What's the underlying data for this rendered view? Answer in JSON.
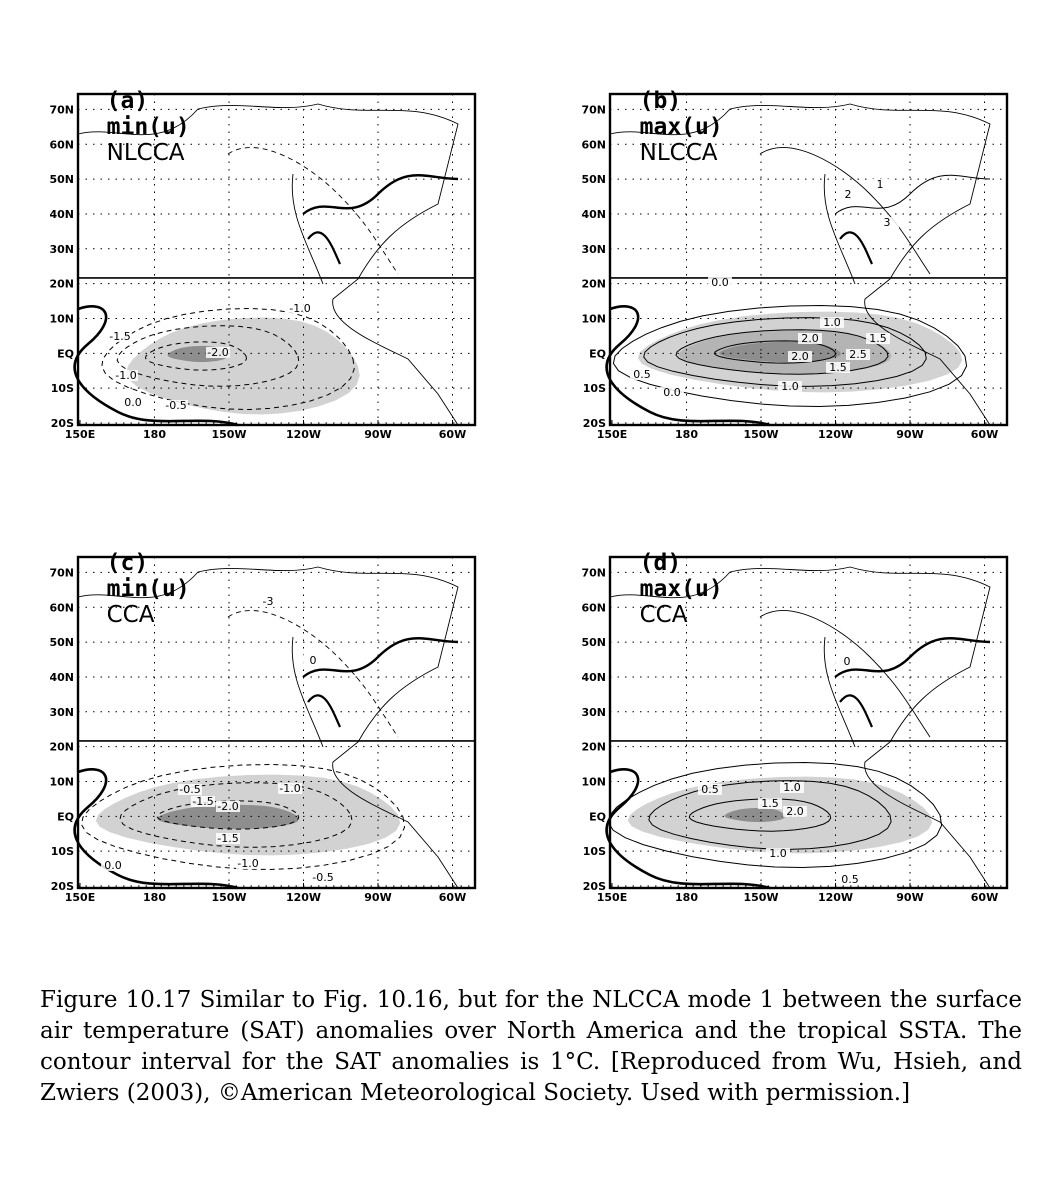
{
  "panels": [
    {
      "letter": "(a)",
      "fn": "min(u)",
      "method": "NLCCA",
      "contours": [
        {
          "kind": "dash",
          "label": "-1.0"
        },
        {
          "kind": "dash",
          "label": "-1.5"
        },
        {
          "kind": "dash",
          "label": "-2.0"
        },
        {
          "kind": "dash",
          "label": "-1.0"
        },
        {
          "kind": "solid",
          "label": "0.0"
        },
        {
          "kind": "dash",
          "label": "-0.5"
        }
      ]
    },
    {
      "letter": "(b)",
      "fn": "max(u)",
      "method": "NLCCA",
      "contours": [
        {
          "kind": "thick",
          "label": "0.0"
        },
        {
          "kind": "solid",
          "label": "1.0"
        },
        {
          "kind": "solid",
          "label": "2.0"
        },
        {
          "kind": "solid",
          "label": "1.5"
        },
        {
          "kind": "solid",
          "label": "2.0"
        },
        {
          "kind": "solid",
          "label": "2.5"
        },
        {
          "kind": "solid",
          "label": "1.5"
        },
        {
          "kind": "solid",
          "label": "0.5"
        },
        {
          "kind": "solid",
          "label": "1.0"
        },
        {
          "kind": "solid",
          "label": "0.0"
        },
        {
          "kind": "solid",
          "label": "2"
        },
        {
          "kind": "solid",
          "label": "1"
        },
        {
          "kind": "solid",
          "label": "3"
        }
      ]
    },
    {
      "letter": "(c)",
      "fn": "min(u)",
      "method": "CCA",
      "contours": [
        {
          "kind": "dash",
          "label": "-0.5"
        },
        {
          "kind": "dash",
          "label": "-1.5"
        },
        {
          "kind": "dash",
          "label": "-2.0"
        },
        {
          "kind": "dash",
          "label": "-1.0"
        },
        {
          "kind": "dash",
          "label": "-1.5"
        },
        {
          "kind": "dash",
          "label": "-1.0"
        },
        {
          "kind": "solid",
          "label": "0.0"
        },
        {
          "kind": "dash",
          "label": "-0.5"
        },
        {
          "kind": "dash",
          "label": "-3"
        },
        {
          "kind": "solid",
          "label": "0"
        }
      ]
    },
    {
      "letter": "(d)",
      "fn": "max(u)",
      "method": "CCA",
      "contours": [
        {
          "kind": "solid",
          "label": "0.5"
        },
        {
          "kind": "solid",
          "label": "1.0"
        },
        {
          "kind": "solid",
          "label": "1.5"
        },
        {
          "kind": "solid",
          "label": "2.0"
        },
        {
          "kind": "solid",
          "label": "1.0"
        },
        {
          "kind": "solid",
          "label": "0.5"
        },
        {
          "kind": "solid",
          "label": "0"
        }
      ]
    }
  ],
  "axes": {
    "lat_ticks": [
      "70N",
      "60N",
      "50N",
      "40N",
      "30N",
      "20N",
      "10N",
      "EQ",
      "10S",
      "20S"
    ],
    "lon_ticks": [
      "150E",
      "180",
      "150W",
      "120W",
      "90W",
      "60W"
    ]
  },
  "caption": "Figure 10.17 Similar to Fig. 10.16, but for the NLCCA mode 1 between the surface air temperature (SAT) anomalies over North America and the tropical SSTA. The contour interval for the SAT anomalies is 1°C. [Reproduced from Wu, Hsieh, and Zwiers (2003), ©American Meteorological Society. Used with permission.]",
  "colors": {
    "shade_light": "#d2d2d2",
    "shade_dark": "#8e8e8e",
    "line": "#000000"
  }
}
